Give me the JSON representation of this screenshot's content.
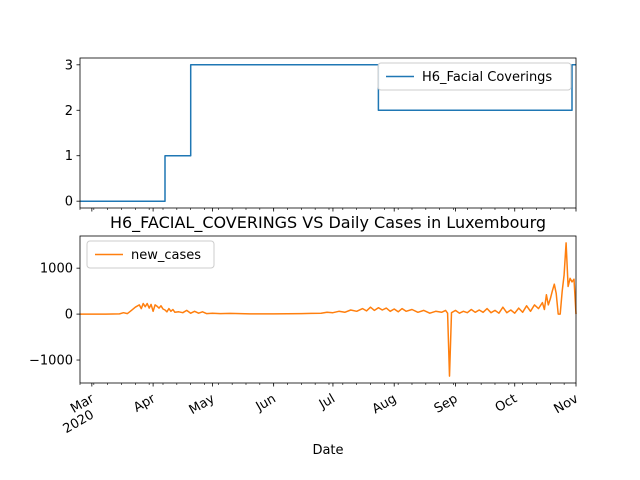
{
  "chart_data": [
    {
      "type": "line",
      "title": "",
      "xlabel": "",
      "ylabel": "",
      "x_range": [
        "2020-02-24",
        "2020-11-01"
      ],
      "ylim": [
        -0.15,
        3.15
      ],
      "yticks": [
        0,
        1,
        2,
        3
      ],
      "grid": false,
      "legend_position": "upper right",
      "series": [
        {
          "name": "H6_Facial Coverings",
          "color": "#1f77b4",
          "step_points": [
            [
              "2020-02-24",
              0
            ],
            [
              "2020-04-07",
              0
            ],
            [
              "2020-04-07",
              1
            ],
            [
              "2020-04-20",
              1
            ],
            [
              "2020-04-20",
              3
            ],
            [
              "2020-07-24",
              3
            ],
            [
              "2020-07-24",
              2
            ],
            [
              "2020-10-30",
              2
            ],
            [
              "2020-10-30",
              3
            ],
            [
              "2020-11-01",
              3
            ]
          ]
        }
      ]
    },
    {
      "type": "line",
      "title": "H6_FACIAL_COVERINGS VS Daily Cases in Luxembourg",
      "xlabel": "Date",
      "ylabel": "",
      "x_range": [
        "2020-02-24",
        "2020-11-01"
      ],
      "ylim": [
        -1500,
        1700
      ],
      "yticks": [
        -1000,
        0,
        1000
      ],
      "grid": false,
      "legend_position": "upper left",
      "x_major_ticks": [
        {
          "date": "2020-03-01",
          "label": "Mar",
          "label2": "2020"
        },
        {
          "date": "2020-04-01",
          "label": "Apr"
        },
        {
          "date": "2020-05-01",
          "label": "May"
        },
        {
          "date": "2020-06-01",
          "label": "Jun"
        },
        {
          "date": "2020-07-01",
          "label": "Jul"
        },
        {
          "date": "2020-08-01",
          "label": "Aug"
        },
        {
          "date": "2020-09-01",
          "label": "Sep"
        },
        {
          "date": "2020-10-01",
          "label": "Oct"
        },
        {
          "date": "2020-11-01",
          "label": "Nov"
        }
      ],
      "series": [
        {
          "name": "new_cases",
          "color": "#ff7f0e",
          "points": [
            [
              "2020-02-24",
              0
            ],
            [
              "2020-03-08",
              0
            ],
            [
              "2020-03-15",
              5
            ],
            [
              "2020-03-17",
              30
            ],
            [
              "2020-03-19",
              10
            ],
            [
              "2020-03-21",
              80
            ],
            [
              "2020-03-23",
              150
            ],
            [
              "2020-03-25",
              200
            ],
            [
              "2020-03-26",
              120
            ],
            [
              "2020-03-27",
              230
            ],
            [
              "2020-03-28",
              160
            ],
            [
              "2020-03-29",
              230
            ],
            [
              "2020-03-30",
              130
            ],
            [
              "2020-03-31",
              210
            ],
            [
              "2020-04-01",
              60
            ],
            [
              "2020-04-02",
              200
            ],
            [
              "2020-04-03",
              170
            ],
            [
              "2020-04-04",
              130
            ],
            [
              "2020-04-05",
              180
            ],
            [
              "2020-04-06",
              110
            ],
            [
              "2020-04-07",
              90
            ],
            [
              "2020-04-08",
              50
            ],
            [
              "2020-04-09",
              120
            ],
            [
              "2020-04-10",
              60
            ],
            [
              "2020-04-11",
              100
            ],
            [
              "2020-04-12",
              40
            ],
            [
              "2020-04-14",
              50
            ],
            [
              "2020-04-16",
              30
            ],
            [
              "2020-04-18",
              80
            ],
            [
              "2020-04-20",
              20
            ],
            [
              "2020-04-22",
              60
            ],
            [
              "2020-04-24",
              20
            ],
            [
              "2020-04-26",
              50
            ],
            [
              "2020-04-28",
              10
            ],
            [
              "2020-05-01",
              20
            ],
            [
              "2020-05-05",
              10
            ],
            [
              "2020-05-10",
              15
            ],
            [
              "2020-05-20",
              5
            ],
            [
              "2020-06-01",
              5
            ],
            [
              "2020-06-15",
              10
            ],
            [
              "2020-06-20",
              15
            ],
            [
              "2020-06-25",
              20
            ],
            [
              "2020-06-28",
              40
            ],
            [
              "2020-07-01",
              30
            ],
            [
              "2020-07-04",
              60
            ],
            [
              "2020-07-07",
              40
            ],
            [
              "2020-07-10",
              90
            ],
            [
              "2020-07-13",
              60
            ],
            [
              "2020-07-16",
              120
            ],
            [
              "2020-07-18",
              70
            ],
            [
              "2020-07-20",
              150
            ],
            [
              "2020-07-22",
              80
            ],
            [
              "2020-07-24",
              140
            ],
            [
              "2020-07-26",
              90
            ],
            [
              "2020-07-28",
              130
            ],
            [
              "2020-07-30",
              60
            ],
            [
              "2020-08-01",
              110
            ],
            [
              "2020-08-03",
              50
            ],
            [
              "2020-08-05",
              120
            ],
            [
              "2020-08-07",
              60
            ],
            [
              "2020-08-10",
              100
            ],
            [
              "2020-08-13",
              40
            ],
            [
              "2020-08-16",
              80
            ],
            [
              "2020-08-19",
              20
            ],
            [
              "2020-08-22",
              60
            ],
            [
              "2020-08-25",
              40
            ],
            [
              "2020-08-27",
              80
            ],
            [
              "2020-08-28",
              20
            ],
            [
              "2020-08-29",
              -1350
            ],
            [
              "2020-08-30",
              30
            ],
            [
              "2020-09-01",
              80
            ],
            [
              "2020-09-03",
              20
            ],
            [
              "2020-09-05",
              60
            ],
            [
              "2020-09-07",
              30
            ],
            [
              "2020-09-09",
              100
            ],
            [
              "2020-09-11",
              40
            ],
            [
              "2020-09-13",
              90
            ],
            [
              "2020-09-15",
              40
            ],
            [
              "2020-09-17",
              120
            ],
            [
              "2020-09-19",
              30
            ],
            [
              "2020-09-21",
              80
            ],
            [
              "2020-09-23",
              20
            ],
            [
              "2020-09-25",
              150
            ],
            [
              "2020-09-27",
              30
            ],
            [
              "2020-09-29",
              90
            ],
            [
              "2020-10-01",
              20
            ],
            [
              "2020-10-03",
              130
            ],
            [
              "2020-10-05",
              40
            ],
            [
              "2020-10-07",
              180
            ],
            [
              "2020-10-09",
              60
            ],
            [
              "2020-10-11",
              200
            ],
            [
              "2020-10-13",
              120
            ],
            [
              "2020-10-15",
              250
            ],
            [
              "2020-10-16",
              100
            ],
            [
              "2020-10-17",
              420
            ],
            [
              "2020-10-18",
              200
            ],
            [
              "2020-10-19",
              330
            ],
            [
              "2020-10-20",
              500
            ],
            [
              "2020-10-21",
              650
            ],
            [
              "2020-10-22",
              450
            ],
            [
              "2020-10-23",
              0
            ],
            [
              "2020-10-24",
              0
            ],
            [
              "2020-10-25",
              500
            ],
            [
              "2020-10-26",
              850
            ],
            [
              "2020-10-27",
              1550
            ],
            [
              "2020-10-28",
              600
            ],
            [
              "2020-10-29",
              780
            ],
            [
              "2020-10-30",
              700
            ],
            [
              "2020-10-31",
              760
            ],
            [
              "2020-11-01",
              0
            ]
          ]
        }
      ]
    }
  ]
}
